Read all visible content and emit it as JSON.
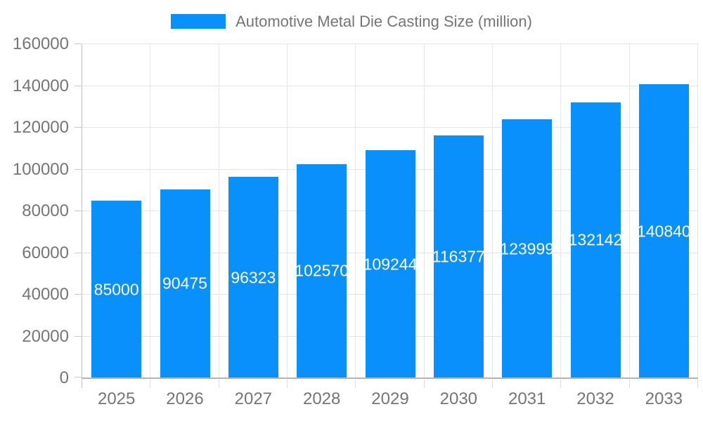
{
  "legend": {
    "label": "Automotive Metal Die Casting Size (million)"
  },
  "colors": {
    "bar": "#0990fa",
    "bar_value_text": "#ffffff",
    "axis_text": "#757575",
    "legend_text": "#757575",
    "gridline": "#e3e3e3",
    "baseline": "#b3b3b3",
    "axis_line": "#c2c2c2",
    "background": "#ffffff"
  },
  "chart_data": {
    "type": "bar",
    "title": "Automotive Metal Die Casting Size (million)",
    "series_name": "Automotive Metal Die Casting Size (million)",
    "categories": [
      "2025",
      "2026",
      "2027",
      "2028",
      "2029",
      "2030",
      "2031",
      "2032",
      "2033"
    ],
    "values": [
      85000,
      90475,
      96323,
      102570,
      109244,
      116377,
      123999,
      132142,
      140840
    ],
    "bar_value_labels": [
      "85000",
      "90475",
      "96323",
      "102570",
      "109244",
      "116377",
      "123999",
      "132142",
      "140840"
    ],
    "xlabel": "",
    "ylabel": "",
    "ylim": [
      0,
      160000
    ],
    "ytick_step": 20000,
    "y_tick_labels": [
      "0",
      "20000",
      "40000",
      "60000",
      "80000",
      "100000",
      "120000",
      "140000",
      "160000"
    ],
    "grid": true,
    "legend_position": "top",
    "bar_labels_visible": true
  }
}
